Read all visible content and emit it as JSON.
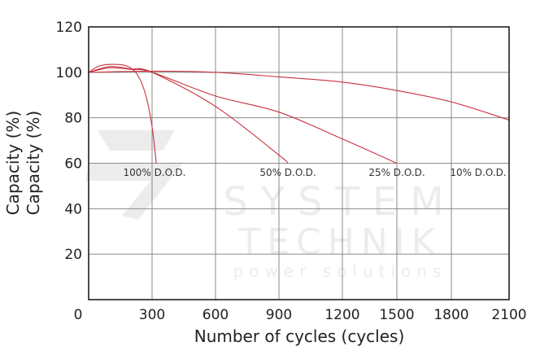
{
  "chart_data": {
    "type": "line",
    "title": "",
    "xlabel": "Number of cycles (cycles)",
    "ylabel": "Capacity (%)",
    "ylabel_duplicate": "Capacity (%)",
    "xlim": [
      0,
      2100
    ],
    "ylim": [
      0,
      120
    ],
    "x_ticks": [
      0,
      300,
      600,
      900,
      1200,
      1500,
      1800,
      2100
    ],
    "y_ticks": [
      20,
      40,
      60,
      80,
      100,
      120
    ],
    "x_origin_label": "0",
    "grid": true,
    "line_color": "#c8313f",
    "grid_color": "#8a8a8a",
    "series": [
      {
        "name": "100% D.O.D.",
        "x": [
          0,
          50,
          110,
          180,
          230,
          270,
          300,
          320
        ],
        "y": [
          100,
          102.8,
          103.5,
          102.8,
          99,
          90,
          76,
          60
        ]
      },
      {
        "name": "50% D.O.D.",
        "x": [
          0,
          100,
          200,
          300,
          600,
          900,
          942
        ],
        "y": [
          100,
          102.5,
          101.5,
          100,
          85,
          63.6,
          60
        ]
      },
      {
        "name": "25% D.O.D.",
        "x": [
          0,
          100,
          200,
          300,
          600,
          900,
          1200,
          1500
        ],
        "y": [
          100,
          102,
          101.3,
          100,
          89.6,
          82.5,
          70.7,
          60
        ]
      },
      {
        "name": "10% D.O.D.",
        "x": [
          0,
          300,
          600,
          900,
          1200,
          1500,
          1800,
          2100
        ],
        "y": [
          100,
          100.5,
          100,
          98,
          95.7,
          92,
          87,
          79
        ]
      }
    ]
  },
  "watermark": {
    "line1": "SYSTEM",
    "line2": "TECHNIK",
    "line3": "power solutions"
  }
}
